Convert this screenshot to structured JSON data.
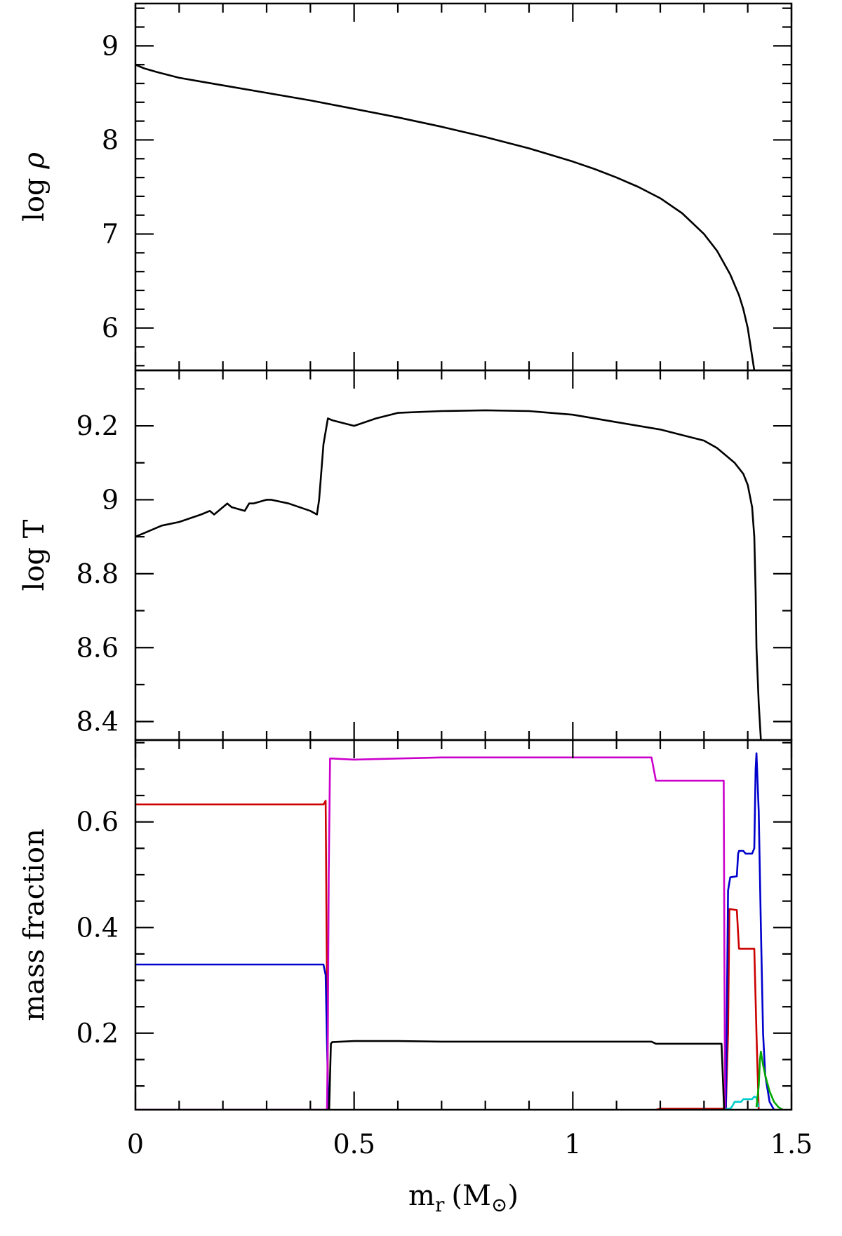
{
  "chart_data": [
    {
      "type": "line",
      "panel": "top",
      "ylabel": "log ρ",
      "ylabel_text": "log ",
      "ylabel_symbol": "ρ",
      "xlim": [
        0,
        1.5
      ],
      "ylim": [
        5.55,
        9.45
      ],
      "yticks_major": [
        6,
        7,
        8,
        9
      ],
      "ytick_labels": [
        "6",
        "7",
        "8",
        "9"
      ],
      "grid": false,
      "series": [
        {
          "color": "#000000",
          "x": [
            0,
            0.02,
            0.05,
            0.1,
            0.15,
            0.2,
            0.3,
            0.4,
            0.5,
            0.6,
            0.7,
            0.8,
            0.9,
            1.0,
            1.05,
            1.1,
            1.15,
            1.2,
            1.25,
            1.3,
            1.33,
            1.36,
            1.38,
            1.39,
            1.4,
            1.405,
            1.41,
            1.415
          ],
          "y": [
            8.8,
            8.76,
            8.72,
            8.66,
            8.62,
            8.58,
            8.5,
            8.42,
            8.33,
            8.24,
            8.14,
            8.03,
            7.91,
            7.77,
            7.69,
            7.6,
            7.5,
            7.38,
            7.22,
            7.0,
            6.82,
            6.57,
            6.35,
            6.2,
            6.0,
            5.85,
            5.7,
            5.55
          ]
        }
      ]
    },
    {
      "type": "line",
      "panel": "middle",
      "ylabel": "log T",
      "xlim": [
        0,
        1.5
      ],
      "ylim": [
        8.35,
        9.35
      ],
      "yticks_major": [
        8.4,
        8.6,
        8.8,
        9.0,
        9.2
      ],
      "ytick_labels": [
        "8.4",
        "8.6",
        "8.8",
        "9",
        "9.2"
      ],
      "grid": false,
      "series": [
        {
          "color": "#000000",
          "x": [
            0,
            0.02,
            0.06,
            0.1,
            0.15,
            0.17,
            0.18,
            0.2,
            0.21,
            0.22,
            0.25,
            0.26,
            0.27,
            0.3,
            0.31,
            0.35,
            0.4,
            0.415,
            0.42,
            0.43,
            0.44,
            0.45,
            0.5,
            0.55,
            0.6,
            0.7,
            0.8,
            0.9,
            1.0,
            1.1,
            1.2,
            1.25,
            1.3,
            1.33,
            1.35,
            1.37,
            1.39,
            1.4,
            1.41,
            1.415,
            1.418,
            1.42,
            1.425,
            1.43
          ],
          "y": [
            8.9,
            8.91,
            8.93,
            8.94,
            8.96,
            8.97,
            8.96,
            8.98,
            8.99,
            8.98,
            8.97,
            8.99,
            8.99,
            9.0,
            9.0,
            8.99,
            8.97,
            8.96,
            9.0,
            9.15,
            9.22,
            9.215,
            9.2,
            9.22,
            9.235,
            9.24,
            9.242,
            9.24,
            9.23,
            9.21,
            9.19,
            9.175,
            9.16,
            9.14,
            9.12,
            9.1,
            9.07,
            9.04,
            8.98,
            8.9,
            8.75,
            8.6,
            8.45,
            8.35
          ]
        }
      ]
    },
    {
      "type": "line",
      "panel": "bottom",
      "ylabel": "mass fraction",
      "xlabel": "m",
      "xlabel_sub": "r",
      "xlabel_unit": "(M",
      "xlabel_unit_sub": "⊙",
      "xlabel_close": ")",
      "xlim": [
        0,
        1.5
      ],
      "ylim": [
        0.055,
        0.755
      ],
      "xticks_major": [
        0,
        0.5,
        1,
        1.5
      ],
      "xtick_labels": [
        "0",
        "0.5",
        "1",
        "1.5"
      ],
      "yticks_major": [
        0.2,
        0.4,
        0.6
      ],
      "ytick_labels": [
        "0.2",
        "0.4",
        "0.6"
      ],
      "grid": false,
      "series": [
        {
          "color": "#cc0000",
          "x": [
            0,
            0.43,
            0.435,
            0.437,
            0.44,
            0.442
          ],
          "y": [
            0.633,
            0.633,
            0.64,
            0.4,
            0.1,
            0.055
          ]
        },
        {
          "color": "#cc0000",
          "x": [
            1.19,
            1.2,
            1.35,
            1.355,
            1.358,
            1.375,
            1.38,
            1.383,
            1.415,
            1.42,
            1.425
          ],
          "y": [
            0.055,
            0.057,
            0.057,
            0.2,
            0.435,
            0.433,
            0.36,
            0.36,
            0.36,
            0.2,
            0.055
          ]
        },
        {
          "color": "#0000cc",
          "x": [
            0,
            0.43,
            0.435,
            0.44,
            0.443
          ],
          "y": [
            0.33,
            0.33,
            0.31,
            0.1,
            0.055
          ]
        },
        {
          "color": "#0000cc",
          "x": [
            1.35,
            1.355,
            1.36,
            1.375,
            1.378,
            1.38,
            1.39,
            1.395,
            1.41,
            1.415,
            1.418,
            1.42,
            1.425,
            1.43,
            1.435,
            1.44,
            1.45,
            1.46
          ],
          "y": [
            0.055,
            0.47,
            0.495,
            0.497,
            0.54,
            0.545,
            0.545,
            0.54,
            0.54,
            0.55,
            0.7,
            0.73,
            0.62,
            0.4,
            0.2,
            0.12,
            0.07,
            0.055
          ]
        },
        {
          "color": "#cc00cc",
          "x": [
            0,
            0.438,
            0.44,
            0.442,
            0.445,
            0.45,
            0.5,
            0.6,
            0.7,
            1.0,
            1.18,
            1.19,
            1.2,
            1.33,
            1.345,
            1.348
          ],
          "y": [
            0.055,
            0.055,
            0.2,
            0.5,
            0.72,
            0.72,
            0.718,
            0.72,
            0.722,
            0.722,
            0.722,
            0.678,
            0.678,
            0.678,
            0.678,
            0.055
          ]
        },
        {
          "color": "#000000",
          "x": [
            0.443,
            0.445,
            0.447,
            0.45,
            0.5,
            0.6,
            0.7,
            0.8,
            1.0,
            1.18,
            1.19,
            1.3,
            1.34,
            1.346
          ],
          "y": [
            0.055,
            0.12,
            0.18,
            0.183,
            0.185,
            0.185,
            0.184,
            0.184,
            0.184,
            0.184,
            0.18,
            0.18,
            0.18,
            0.055
          ]
        },
        {
          "color": "#00cccc",
          "x": [
            1.35,
            1.36,
            1.365,
            1.37,
            1.385,
            1.39,
            1.395,
            1.41,
            1.415,
            1.42,
            1.425
          ],
          "y": [
            0.057,
            0.057,
            0.062,
            0.07,
            0.07,
            0.075,
            0.075,
            0.075,
            0.08,
            0.078,
            0.06
          ]
        },
        {
          "color": "#00aa00",
          "x": [
            1.42,
            1.425,
            1.428,
            1.43,
            1.435,
            1.44,
            1.45,
            1.46,
            1.47,
            1.48
          ],
          "y": [
            0.06,
            0.1,
            0.15,
            0.165,
            0.14,
            0.12,
            0.09,
            0.07,
            0.06,
            0.055
          ]
        }
      ]
    }
  ]
}
